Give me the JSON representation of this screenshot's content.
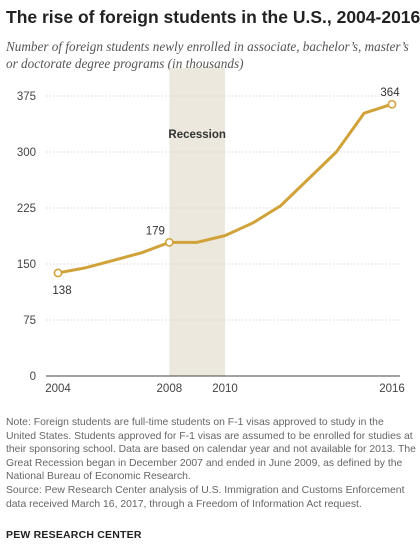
{
  "title": "The rise of foreign students in the U.S., 2004-2016",
  "subtitle": "Number of foreign students newly enrolled in associate, bachelor’s, master’s or doctorate degree programs (in thousands)",
  "note": "Note: Foreign students are full-time students on F-1 visas approved to study in the United States. Students approved for F-1 visas are assumed to be enrolled for studies at their sponsoring school. Data are based on calendar year and not available for 2013. The Great Recession began in December 2007 and ended in June 2009, as defined by the National Bureau of Economic Research.",
  "source": "Source: Pew Research Center analysis of U.S. Immigration and Customs Enforcement data received March 16, 2017, through a Freedom of Information Act request.",
  "brand": "PEW RESEARCH CENTER",
  "colors": {
    "line": "#d1a23a",
    "recession": "#ece8dd",
    "grid": "#d9d9d9"
  },
  "chart_data": {
    "type": "line",
    "title": "The rise of foreign students in the U.S., 2004-2016",
    "xlabel": "",
    "ylabel": "",
    "xlim": [
      2004,
      2016
    ],
    "ylim": [
      0,
      375
    ],
    "x_ticks": [
      2004,
      2008,
      2010,
      2016
    ],
    "y_ticks": [
      0,
      75,
      150,
      225,
      300,
      375
    ],
    "grid": true,
    "series": [
      {
        "x": [
          2004,
          2005,
          2006,
          2007,
          2008,
          2009,
          2010,
          2011,
          2012,
          2014,
          2015,
          2016
        ],
        "values": [
          138,
          145,
          155,
          165,
          179,
          179,
          188,
          205,
          228,
          300,
          352,
          364
        ]
      }
    ],
    "data_labels": [
      {
        "x": 2004,
        "y": 138,
        "text": "138"
      },
      {
        "x": 2008,
        "y": 179,
        "text": "179"
      },
      {
        "x": 2016,
        "y": 364,
        "text": "364"
      }
    ],
    "annotations": [
      {
        "type": "shaded-span",
        "x_start": 2008,
        "x_end": 2010,
        "label": "Recession"
      }
    ]
  }
}
